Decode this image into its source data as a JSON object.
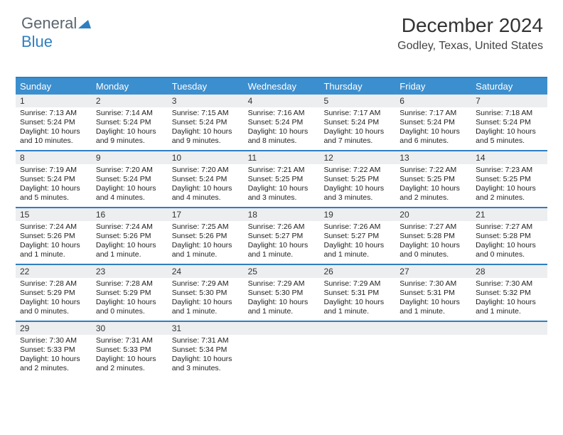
{
  "logo": {
    "part1": "General",
    "part2": "Blue"
  },
  "title": "December 2024",
  "location": "Godley, Texas, United States",
  "colors": {
    "accent": "#2f7fc0",
    "header_bg": "#3c8fcf",
    "daynum_bg": "#eceef0",
    "text": "#222222"
  },
  "day_labels": [
    "Sunday",
    "Monday",
    "Tuesday",
    "Wednesday",
    "Thursday",
    "Friday",
    "Saturday"
  ],
  "weeks": [
    [
      {
        "n": "1",
        "sunrise": "7:13 AM",
        "sunset": "5:24 PM",
        "daylight": "10 hours and 10 minutes."
      },
      {
        "n": "2",
        "sunrise": "7:14 AM",
        "sunset": "5:24 PM",
        "daylight": "10 hours and 9 minutes."
      },
      {
        "n": "3",
        "sunrise": "7:15 AM",
        "sunset": "5:24 PM",
        "daylight": "10 hours and 9 minutes."
      },
      {
        "n": "4",
        "sunrise": "7:16 AM",
        "sunset": "5:24 PM",
        "daylight": "10 hours and 8 minutes."
      },
      {
        "n": "5",
        "sunrise": "7:17 AM",
        "sunset": "5:24 PM",
        "daylight": "10 hours and 7 minutes."
      },
      {
        "n": "6",
        "sunrise": "7:17 AM",
        "sunset": "5:24 PM",
        "daylight": "10 hours and 6 minutes."
      },
      {
        "n": "7",
        "sunrise": "7:18 AM",
        "sunset": "5:24 PM",
        "daylight": "10 hours and 5 minutes."
      }
    ],
    [
      {
        "n": "8",
        "sunrise": "7:19 AM",
        "sunset": "5:24 PM",
        "daylight": "10 hours and 5 minutes."
      },
      {
        "n": "9",
        "sunrise": "7:20 AM",
        "sunset": "5:24 PM",
        "daylight": "10 hours and 4 minutes."
      },
      {
        "n": "10",
        "sunrise": "7:20 AM",
        "sunset": "5:24 PM",
        "daylight": "10 hours and 4 minutes."
      },
      {
        "n": "11",
        "sunrise": "7:21 AM",
        "sunset": "5:25 PM",
        "daylight": "10 hours and 3 minutes."
      },
      {
        "n": "12",
        "sunrise": "7:22 AM",
        "sunset": "5:25 PM",
        "daylight": "10 hours and 3 minutes."
      },
      {
        "n": "13",
        "sunrise": "7:22 AM",
        "sunset": "5:25 PM",
        "daylight": "10 hours and 2 minutes."
      },
      {
        "n": "14",
        "sunrise": "7:23 AM",
        "sunset": "5:25 PM",
        "daylight": "10 hours and 2 minutes."
      }
    ],
    [
      {
        "n": "15",
        "sunrise": "7:24 AM",
        "sunset": "5:26 PM",
        "daylight": "10 hours and 1 minute."
      },
      {
        "n": "16",
        "sunrise": "7:24 AM",
        "sunset": "5:26 PM",
        "daylight": "10 hours and 1 minute."
      },
      {
        "n": "17",
        "sunrise": "7:25 AM",
        "sunset": "5:26 PM",
        "daylight": "10 hours and 1 minute."
      },
      {
        "n": "18",
        "sunrise": "7:26 AM",
        "sunset": "5:27 PM",
        "daylight": "10 hours and 1 minute."
      },
      {
        "n": "19",
        "sunrise": "7:26 AM",
        "sunset": "5:27 PM",
        "daylight": "10 hours and 1 minute."
      },
      {
        "n": "20",
        "sunrise": "7:27 AM",
        "sunset": "5:28 PM",
        "daylight": "10 hours and 0 minutes."
      },
      {
        "n": "21",
        "sunrise": "7:27 AM",
        "sunset": "5:28 PM",
        "daylight": "10 hours and 0 minutes."
      }
    ],
    [
      {
        "n": "22",
        "sunrise": "7:28 AM",
        "sunset": "5:29 PM",
        "daylight": "10 hours and 0 minutes."
      },
      {
        "n": "23",
        "sunrise": "7:28 AM",
        "sunset": "5:29 PM",
        "daylight": "10 hours and 0 minutes."
      },
      {
        "n": "24",
        "sunrise": "7:29 AM",
        "sunset": "5:30 PM",
        "daylight": "10 hours and 1 minute."
      },
      {
        "n": "25",
        "sunrise": "7:29 AM",
        "sunset": "5:30 PM",
        "daylight": "10 hours and 1 minute."
      },
      {
        "n": "26",
        "sunrise": "7:29 AM",
        "sunset": "5:31 PM",
        "daylight": "10 hours and 1 minute."
      },
      {
        "n": "27",
        "sunrise": "7:30 AM",
        "sunset": "5:31 PM",
        "daylight": "10 hours and 1 minute."
      },
      {
        "n": "28",
        "sunrise": "7:30 AM",
        "sunset": "5:32 PM",
        "daylight": "10 hours and 1 minute."
      }
    ],
    [
      {
        "n": "29",
        "sunrise": "7:30 AM",
        "sunset": "5:33 PM",
        "daylight": "10 hours and 2 minutes."
      },
      {
        "n": "30",
        "sunrise": "7:31 AM",
        "sunset": "5:33 PM",
        "daylight": "10 hours and 2 minutes."
      },
      {
        "n": "31",
        "sunrise": "7:31 AM",
        "sunset": "5:34 PM",
        "daylight": "10 hours and 3 minutes."
      },
      null,
      null,
      null,
      null
    ]
  ],
  "labels": {
    "sunrise": "Sunrise:",
    "sunset": "Sunset:",
    "daylight": "Daylight:"
  }
}
